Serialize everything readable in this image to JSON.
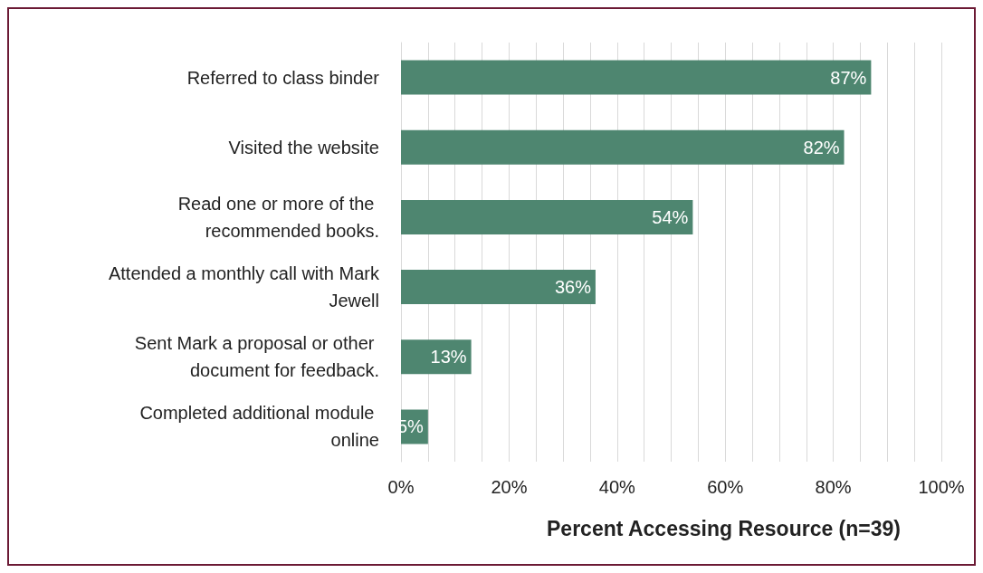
{
  "chart_data": {
    "type": "bar",
    "orientation": "horizontal",
    "xlabel": "Percent Accessing Resource (n=39)",
    "categories": [
      "Referred to class binder",
      "Visited the website",
      "Read one or more of the recommended books.",
      "Attended a monthly call with Mark Jewell",
      "Sent Mark a proposal or other document for feedback.",
      "Completed additional module online"
    ],
    "values": [
      87,
      82,
      54,
      36,
      13,
      5
    ],
    "value_labels": [
      "87%",
      "82%",
      "54%",
      "36%",
      "13%",
      "5%"
    ],
    "color": "#4e8670",
    "xlim": [
      0,
      100
    ],
    "xticks": [
      {
        "value": 0,
        "label": "0%"
      },
      {
        "value": 5,
        "label": null
      },
      {
        "value": 10,
        "label": null
      },
      {
        "value": 15,
        "label": null
      },
      {
        "value": 20,
        "label": "20%"
      },
      {
        "value": 25,
        "label": null
      },
      {
        "value": 30,
        "label": null
      },
      {
        "value": 35,
        "label": null
      },
      {
        "value": 40,
        "label": "40%"
      },
      {
        "value": 45,
        "label": null
      },
      {
        "value": 50,
        "label": null
      },
      {
        "value": 55,
        "label": null
      },
      {
        "value": 60,
        "label": "60%"
      },
      {
        "value": 65,
        "label": null
      },
      {
        "value": 70,
        "label": null
      },
      {
        "value": 75,
        "label": null
      },
      {
        "value": 80,
        "label": "80%"
      },
      {
        "value": 85,
        "label": null
      },
      {
        "value": 90,
        "label": null
      },
      {
        "value": 95,
        "label": null
      },
      {
        "value": 100,
        "label": "100%"
      }
    ],
    "grid": "x"
  }
}
